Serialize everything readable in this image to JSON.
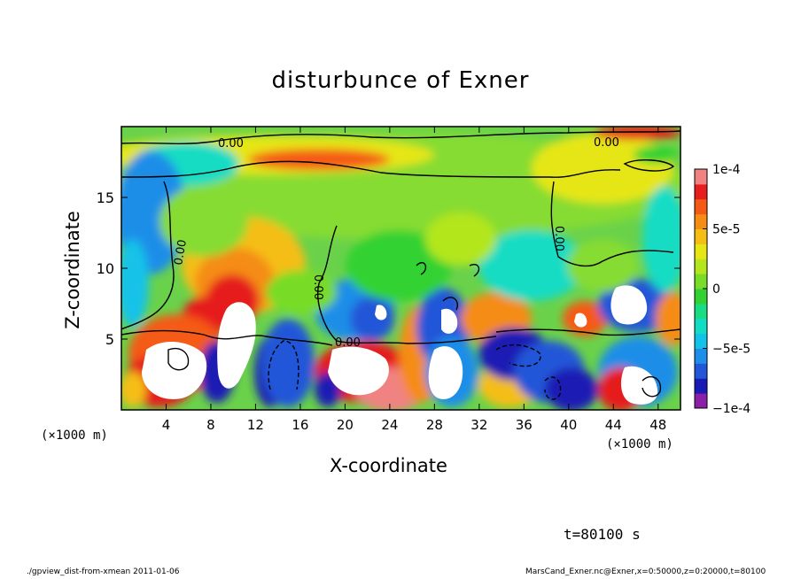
{
  "chart_data": {
    "type": "heatmap",
    "title": "disturbunce of Exner",
    "xlabel": "X-coordinate",
    "ylabel": "Z-coordinate",
    "x_unit": "(×1000 m)",
    "x_unit_right": "(×1000 m)",
    "xlim": [
      0,
      50
    ],
    "ylim": [
      0,
      20
    ],
    "x_ticks": [
      4,
      8,
      12,
      16,
      20,
      24,
      28,
      32,
      36,
      40,
      44,
      48
    ],
    "y_ticks": [
      5,
      10,
      15
    ],
    "colorbar": {
      "range": [
        -0.0001,
        0.0001
      ],
      "tick_values": [
        0.0001,
        5e-05,
        0,
        -5e-05,
        -0.0001
      ],
      "tick_labels": [
        "1e-4",
        "5e-5",
        "0",
        "−5e-5",
        "−1e-4"
      ],
      "colors": [
        "#8b1fa8",
        "#1a1ab4",
        "#2456d8",
        "#1e8ee8",
        "#12c2e8",
        "#12dcc4",
        "#1adc84",
        "#32d232",
        "#78dc28",
        "#b4e61e",
        "#e6e614",
        "#f5be14",
        "#f58c14",
        "#f55a14",
        "#e61e1e",
        "#f08282"
      ]
    },
    "contour_labels": [
      "0.00",
      "0.00",
      "0.00",
      "0.00",
      "0.00",
      "0.00"
    ],
    "features": [
      {
        "name": "upper positive band",
        "x": 22,
        "z": 18,
        "value": 7e-05
      },
      {
        "name": "upper-right positive",
        "x": 47,
        "z": 19.5,
        "value": 7e-05
      },
      {
        "name": "positive lobe",
        "x": 11,
        "z": 8,
        "value": 6e-05
      },
      {
        "name": "saturated positive",
        "x": 10,
        "z": 5,
        "value": 0.00012
      },
      {
        "name": "saturated positive",
        "x": 5,
        "z": 3,
        "value": 0.00012
      },
      {
        "name": "saturated positive",
        "x": 21,
        "z": 2.5,
        "value": 0.00012
      },
      {
        "name": "saturated positive",
        "x": 30,
        "z": 2,
        "value": 0.00012
      },
      {
        "name": "saturated positive",
        "x": 46,
        "z": 8,
        "value": 0.00012
      },
      {
        "name": "negative core",
        "x": 15,
        "z": 2.5,
        "value": -0.0001
      },
      {
        "name": "negative core",
        "x": 22,
        "z": 7,
        "value": -8e-05
      },
      {
        "name": "negative core",
        "x": 35,
        "z": 3,
        "value": -9e-05
      },
      {
        "name": "negative core",
        "x": 41,
        "z": 2.5,
        "value": -8e-05
      }
    ]
  },
  "time_label": "t=80100 s",
  "footer_left": "./gpview_dist-from-xmean  2011-01-06",
  "footer_right": "MarsCand_Exner.nc@Exner,x=0:50000,z=0:20000,t=80100"
}
